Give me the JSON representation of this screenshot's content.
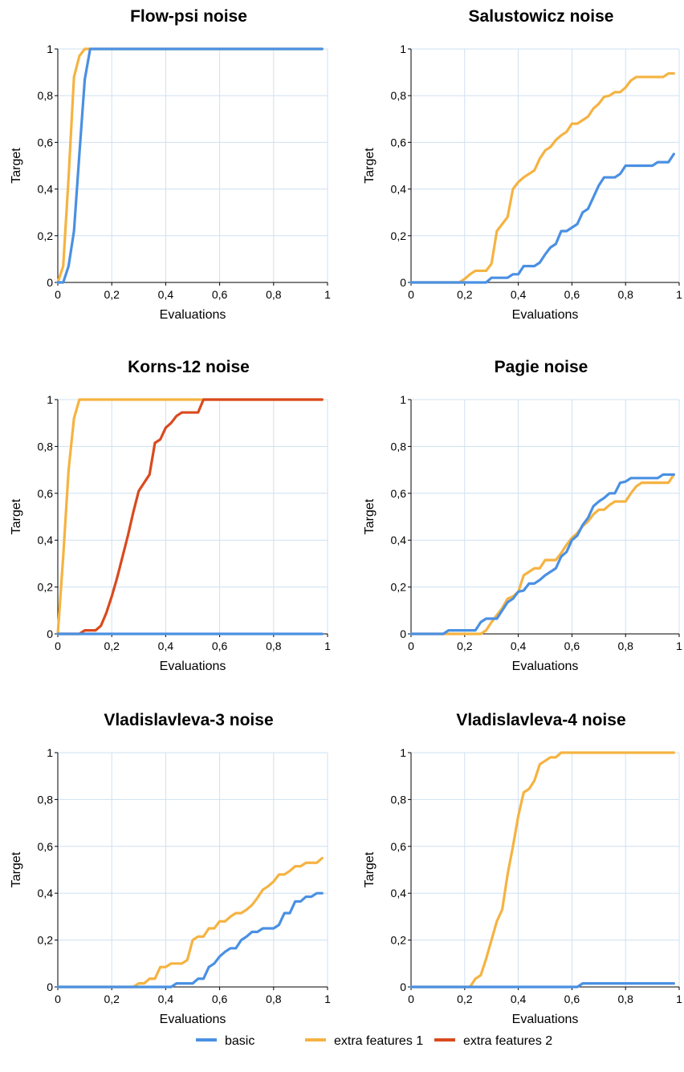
{
  "colors": {
    "basic": "#4a90e2",
    "extra features 1": "#f5b342",
    "extra features 2": "#d94a1e",
    "grid": "#cfe0f1",
    "axis": "#000000"
  },
  "legend": {
    "placement": "bottom-center",
    "items": [
      "basic",
      "extra features 1",
      "extra features 2"
    ]
  },
  "chart_data": [
    {
      "type": "line",
      "title": "Flow-psi noise",
      "xlabel": "Evaluations",
      "ylabel": "Target",
      "xlim": [
        0,
        1
      ],
      "ylim": [
        0,
        1
      ],
      "grid": true,
      "xticks": [
        "0",
        "0,2",
        "0,4",
        "0,6",
        "0,8",
        "1"
      ],
      "yticks": [
        "0",
        "0,2",
        "0,4",
        "0,6",
        "0,8",
        "1"
      ],
      "series": [
        {
          "name": "basic",
          "x": [
            0,
            0.02,
            0.04,
            0.06,
            0.08,
            0.1,
            0.12,
            0.2,
            0.4,
            0.6,
            0.8,
            0.98
          ],
          "y": [
            0,
            0,
            0.07,
            0.22,
            0.55,
            0.87,
            1,
            1,
            1,
            1,
            1,
            1
          ]
        },
        {
          "name": "extra features 1",
          "x": [
            0,
            0.02,
            0.04,
            0.06,
            0.08,
            0.1,
            0.2,
            0.4,
            0.6,
            0.8,
            0.98
          ],
          "y": [
            0,
            0.07,
            0.45,
            0.88,
            0.97,
            1,
            1,
            1,
            1,
            1,
            1
          ]
        }
      ]
    },
    {
      "type": "line",
      "title": "Salustowicz noise",
      "xlabel": "Evaluations",
      "ylabel": "Target",
      "xlim": [
        0,
        1
      ],
      "ylim": [
        0,
        1
      ],
      "grid": true,
      "xticks": [
        "0",
        "0,2",
        "0,4",
        "0,6",
        "0,8",
        "1"
      ],
      "yticks": [
        "0",
        "0,2",
        "0,4",
        "0,6",
        "0,8",
        "1"
      ],
      "series": [
        {
          "name": "basic",
          "x": [
            0,
            0.2,
            0.28,
            0.3,
            0.36,
            0.38,
            0.4,
            0.42,
            0.46,
            0.48,
            0.5,
            0.52,
            0.54,
            0.56,
            0.58,
            0.6,
            0.62,
            0.64,
            0.66,
            0.68,
            0.7,
            0.72,
            0.74,
            0.76,
            0.78,
            0.8,
            0.82,
            0.84,
            0.86,
            0.88,
            0.9,
            0.92,
            0.94,
            0.96,
            0.98
          ],
          "y": [
            0,
            0,
            0,
            0.02,
            0.02,
            0.035,
            0.035,
            0.07,
            0.07,
            0.085,
            0.12,
            0.15,
            0.165,
            0.22,
            0.22,
            0.235,
            0.25,
            0.3,
            0.315,
            0.365,
            0.415,
            0.45,
            0.45,
            0.45,
            0.465,
            0.5,
            0.5,
            0.5,
            0.5,
            0.5,
            0.5,
            0.515,
            0.515,
            0.515,
            0.55
          ]
        },
        {
          "name": "extra features 1",
          "x": [
            0,
            0.18,
            0.2,
            0.22,
            0.24,
            0.26,
            0.28,
            0.3,
            0.32,
            0.34,
            0.36,
            0.38,
            0.4,
            0.42,
            0.44,
            0.46,
            0.48,
            0.5,
            0.52,
            0.54,
            0.56,
            0.58,
            0.6,
            0.62,
            0.64,
            0.66,
            0.68,
            0.7,
            0.72,
            0.74,
            0.76,
            0.78,
            0.8,
            0.82,
            0.84,
            0.86,
            0.88,
            0.9,
            0.92,
            0.94,
            0.96,
            0.98
          ],
          "y": [
            0,
            0,
            0.015,
            0.035,
            0.05,
            0.05,
            0.05,
            0.08,
            0.22,
            0.25,
            0.28,
            0.4,
            0.43,
            0.45,
            0.465,
            0.48,
            0.53,
            0.565,
            0.58,
            0.61,
            0.63,
            0.645,
            0.68,
            0.68,
            0.695,
            0.71,
            0.745,
            0.765,
            0.795,
            0.8,
            0.815,
            0.815,
            0.835,
            0.865,
            0.88,
            0.88,
            0.88,
            0.88,
            0.88,
            0.88,
            0.895,
            0.895
          ]
        }
      ]
    },
    {
      "type": "line",
      "title": "Korns-12 noise",
      "xlabel": "Evaluations",
      "ylabel": "Target",
      "xlim": [
        0,
        1
      ],
      "ylim": [
        0,
        1
      ],
      "grid": true,
      "xticks": [
        "0",
        "0,2",
        "0,4",
        "0,6",
        "0,8",
        "1"
      ],
      "yticks": [
        "0",
        "0,2",
        "0,4",
        "0,6",
        "0,8",
        "1"
      ],
      "series": [
        {
          "name": "basic",
          "x": [
            0,
            0.2,
            0.4,
            0.6,
            0.8,
            0.98
          ],
          "y": [
            0,
            0,
            0,
            0,
            0,
            0
          ]
        },
        {
          "name": "extra features 1",
          "x": [
            0,
            0.02,
            0.04,
            0.06,
            0.08,
            0.1,
            0.2,
            0.4,
            0.6,
            0.8,
            0.98
          ],
          "y": [
            0,
            0.33,
            0.7,
            0.92,
            1,
            1,
            1,
            1,
            1,
            1,
            1
          ]
        },
        {
          "name": "extra features 2",
          "x": [
            0,
            0.08,
            0.1,
            0.14,
            0.16,
            0.18,
            0.2,
            0.22,
            0.24,
            0.26,
            0.28,
            0.3,
            0.32,
            0.34,
            0.36,
            0.38,
            0.4,
            0.42,
            0.44,
            0.46,
            0.48,
            0.5,
            0.52,
            0.54,
            0.6,
            0.8,
            0.98
          ],
          "y": [
            0,
            0,
            0.015,
            0.015,
            0.035,
            0.09,
            0.16,
            0.24,
            0.33,
            0.42,
            0.52,
            0.61,
            0.645,
            0.68,
            0.815,
            0.83,
            0.88,
            0.9,
            0.93,
            0.945,
            0.945,
            0.945,
            0.945,
            1,
            1,
            1,
            1
          ]
        }
      ]
    },
    {
      "type": "line",
      "title": "Pagie noise",
      "xlabel": "Evaluations",
      "ylabel": "Target",
      "xlim": [
        0,
        1
      ],
      "ylim": [
        0,
        1
      ],
      "grid": true,
      "xticks": [
        "0",
        "0,2",
        "0,4",
        "0,6",
        "0,8",
        "1"
      ],
      "yticks": [
        "0",
        "0,2",
        "0,4",
        "0,6",
        "0,8",
        "1"
      ],
      "series": [
        {
          "name": "basic",
          "x": [
            0,
            0.12,
            0.14,
            0.24,
            0.26,
            0.28,
            0.32,
            0.34,
            0.36,
            0.38,
            0.4,
            0.42,
            0.44,
            0.46,
            0.48,
            0.5,
            0.52,
            0.54,
            0.56,
            0.58,
            0.6,
            0.62,
            0.64,
            0.66,
            0.68,
            0.7,
            0.72,
            0.74,
            0.76,
            0.78,
            0.8,
            0.82,
            0.84,
            0.86,
            0.88,
            0.9,
            0.92,
            0.94,
            0.96,
            0.98
          ],
          "y": [
            0,
            0,
            0.015,
            0.015,
            0.05,
            0.065,
            0.065,
            0.1,
            0.135,
            0.15,
            0.18,
            0.185,
            0.215,
            0.215,
            0.23,
            0.25,
            0.265,
            0.28,
            0.33,
            0.35,
            0.4,
            0.42,
            0.465,
            0.495,
            0.545,
            0.565,
            0.58,
            0.6,
            0.6,
            0.645,
            0.65,
            0.665,
            0.665,
            0.665,
            0.665,
            0.665,
            0.665,
            0.68,
            0.68,
            0.68
          ]
        },
        {
          "name": "extra features 1",
          "x": [
            0,
            0.26,
            0.28,
            0.3,
            0.32,
            0.34,
            0.36,
            0.38,
            0.4,
            0.42,
            0.44,
            0.46,
            0.48,
            0.5,
            0.52,
            0.54,
            0.56,
            0.58,
            0.6,
            0.62,
            0.64,
            0.66,
            0.68,
            0.7,
            0.72,
            0.74,
            0.76,
            0.78,
            0.8,
            0.82,
            0.84,
            0.86,
            0.88,
            0.9,
            0.92,
            0.94,
            0.96,
            0.98
          ],
          "y": [
            0,
            0,
            0.015,
            0.05,
            0.08,
            0.11,
            0.15,
            0.16,
            0.18,
            0.25,
            0.265,
            0.28,
            0.28,
            0.315,
            0.315,
            0.315,
            0.345,
            0.38,
            0.41,
            0.43,
            0.46,
            0.48,
            0.51,
            0.53,
            0.53,
            0.55,
            0.565,
            0.565,
            0.565,
            0.6,
            0.63,
            0.645,
            0.645,
            0.645,
            0.645,
            0.645,
            0.645,
            0.68
          ]
        }
      ]
    },
    {
      "type": "line",
      "title": "Vladislavleva-3 noise",
      "xlabel": "Evaluations",
      "ylabel": "Target",
      "xlim": [
        0,
        1
      ],
      "ylim": [
        0,
        1
      ],
      "grid": true,
      "xticks": [
        "0",
        "0,2",
        "0,4",
        "0,6",
        "0,8",
        "1"
      ],
      "yticks": [
        "0",
        "0,2",
        "0,4",
        "0,6",
        "0,8",
        "1"
      ],
      "series": [
        {
          "name": "basic",
          "x": [
            0,
            0.42,
            0.44,
            0.5,
            0.52,
            0.54,
            0.56,
            0.58,
            0.6,
            0.62,
            0.64,
            0.66,
            0.68,
            0.7,
            0.72,
            0.74,
            0.76,
            0.78,
            0.8,
            0.82,
            0.84,
            0.86,
            0.88,
            0.9,
            0.92,
            0.94,
            0.96,
            0.98
          ],
          "y": [
            0,
            0,
            0.015,
            0.015,
            0.035,
            0.035,
            0.085,
            0.1,
            0.13,
            0.15,
            0.165,
            0.165,
            0.2,
            0.215,
            0.235,
            0.235,
            0.25,
            0.25,
            0.25,
            0.265,
            0.315,
            0.315,
            0.365,
            0.365,
            0.385,
            0.385,
            0.4,
            0.4
          ]
        },
        {
          "name": "extra features 1",
          "x": [
            0,
            0.28,
            0.3,
            0.32,
            0.34,
            0.36,
            0.38,
            0.4,
            0.42,
            0.44,
            0.46,
            0.48,
            0.5,
            0.52,
            0.54,
            0.56,
            0.58,
            0.6,
            0.62,
            0.64,
            0.66,
            0.68,
            0.7,
            0.72,
            0.74,
            0.76,
            0.78,
            0.8,
            0.82,
            0.84,
            0.86,
            0.88,
            0.9,
            0.92,
            0.94,
            0.96,
            0.98
          ],
          "y": [
            0,
            0,
            0.015,
            0.015,
            0.035,
            0.035,
            0.085,
            0.085,
            0.1,
            0.1,
            0.1,
            0.115,
            0.2,
            0.215,
            0.215,
            0.25,
            0.25,
            0.28,
            0.28,
            0.3,
            0.315,
            0.315,
            0.33,
            0.35,
            0.38,
            0.415,
            0.43,
            0.45,
            0.48,
            0.48,
            0.495,
            0.515,
            0.515,
            0.53,
            0.53,
            0.53,
            0.55
          ]
        }
      ]
    },
    {
      "type": "line",
      "title": "Vladislavleva-4 noise",
      "xlabel": "Evaluations",
      "ylabel": "Target",
      "xlim": [
        0,
        1
      ],
      "ylim": [
        0,
        1
      ],
      "grid": true,
      "xticks": [
        "0",
        "0,2",
        "0,4",
        "0,6",
        "0,8",
        "1"
      ],
      "yticks": [
        "0",
        "0,2",
        "0,4",
        "0,6",
        "0,8",
        "1"
      ],
      "series": [
        {
          "name": "basic",
          "x": [
            0,
            0.2,
            0.4,
            0.6,
            0.62,
            0.64,
            0.7,
            0.8,
            0.98
          ],
          "y": [
            0,
            0,
            0,
            0,
            0,
            0.015,
            0.015,
            0.015,
            0.015
          ]
        },
        {
          "name": "extra features 1",
          "x": [
            0,
            0.22,
            0.24,
            0.26,
            0.28,
            0.3,
            0.32,
            0.34,
            0.36,
            0.38,
            0.4,
            0.42,
            0.44,
            0.46,
            0.48,
            0.5,
            0.52,
            0.54,
            0.56,
            0.58,
            0.6,
            0.8,
            0.98
          ],
          "y": [
            0,
            0,
            0.035,
            0.05,
            0.12,
            0.2,
            0.28,
            0.33,
            0.48,
            0.6,
            0.73,
            0.83,
            0.845,
            0.88,
            0.95,
            0.965,
            0.98,
            0.98,
            1,
            1,
            1,
            1,
            1
          ]
        }
      ]
    }
  ]
}
